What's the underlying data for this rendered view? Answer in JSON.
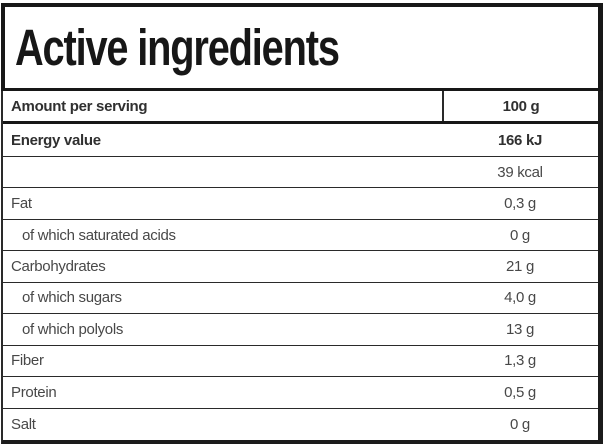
{
  "title": "Active ingredients",
  "table": {
    "header": {
      "label": "Amount per serving",
      "value": "100 g"
    },
    "rows": [
      {
        "label": "Energy value",
        "value": "166 kJ"
      },
      {
        "label": "",
        "value": "39 kcal"
      },
      {
        "label": "Fat",
        "value": "0,3 g"
      },
      {
        "label": "of which saturated acids",
        "value": "0 g"
      },
      {
        "label": "Carbohydrates",
        "value": "21 g"
      },
      {
        "label": "of which sugars",
        "value": "4,0 g"
      },
      {
        "label": "of which polyols",
        "value": "13 g"
      },
      {
        "label": "Fiber",
        "value": "1,3 g"
      },
      {
        "label": "Protein",
        "value": "0,5 g"
      },
      {
        "label": "Salt",
        "value": "0 g"
      }
    ]
  },
  "colors": {
    "border": "#1b1b1b",
    "divider": "#2a2a2a",
    "title_color": "#171717",
    "bold_text": "#303030",
    "text": "#484848",
    "bg": "#ffffff"
  }
}
